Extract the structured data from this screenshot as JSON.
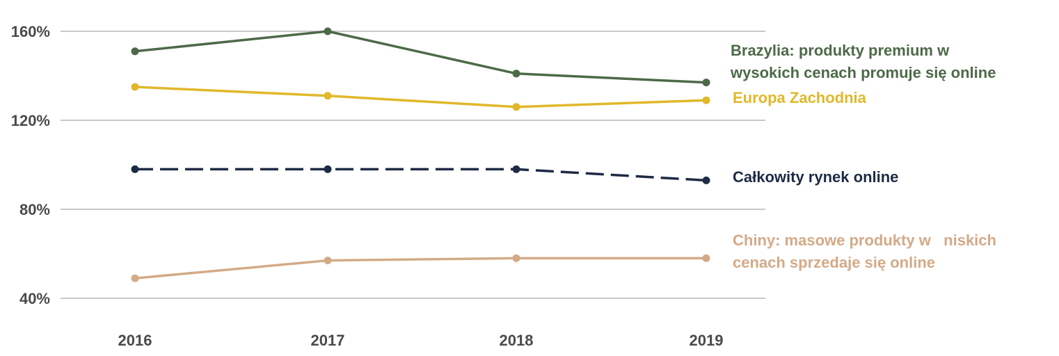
{
  "chart_data": {
    "type": "line",
    "x": [
      "2016",
      "2017",
      "2018",
      "2019"
    ],
    "ylim": [
      40,
      160
    ],
    "yticks": [
      40,
      80,
      120,
      160
    ],
    "ytick_labels": [
      "40%",
      "80%",
      "120%",
      "160%"
    ],
    "grid": true,
    "legend": "right, inline labels",
    "series": [
      {
        "name": "Brazylia: produkty premium w wysokich cenach promuje się online",
        "label_lines": [
          "Brazylia: produkty premium w",
          "wysokich cenach promuje się online"
        ],
        "values": [
          151,
          160,
          141,
          137
        ],
        "color": "#4d6a48",
        "dashed": false
      },
      {
        "name": "Europa Zachodnia",
        "label_lines": [
          "Europa Zachodnia"
        ],
        "values": [
          135,
          131,
          126,
          129
        ],
        "color": "#e0b82a",
        "dashed": false
      },
      {
        "name": "Całkowity rynek online",
        "label_lines": [
          "Całkowity rynek online"
        ],
        "values": [
          98,
          98,
          98,
          93
        ],
        "color": "#1e2b45",
        "dashed": true
      },
      {
        "name": "Chiny: masowe produkty w niskich cenach sprzedaje się online",
        "label_lines": [
          "Chiny: masowe produkty w   niskich",
          "cenach sprzedaje się online"
        ],
        "values": [
          49,
          57,
          58,
          58
        ],
        "color": "#d3aa88",
        "dashed": false
      }
    ]
  }
}
